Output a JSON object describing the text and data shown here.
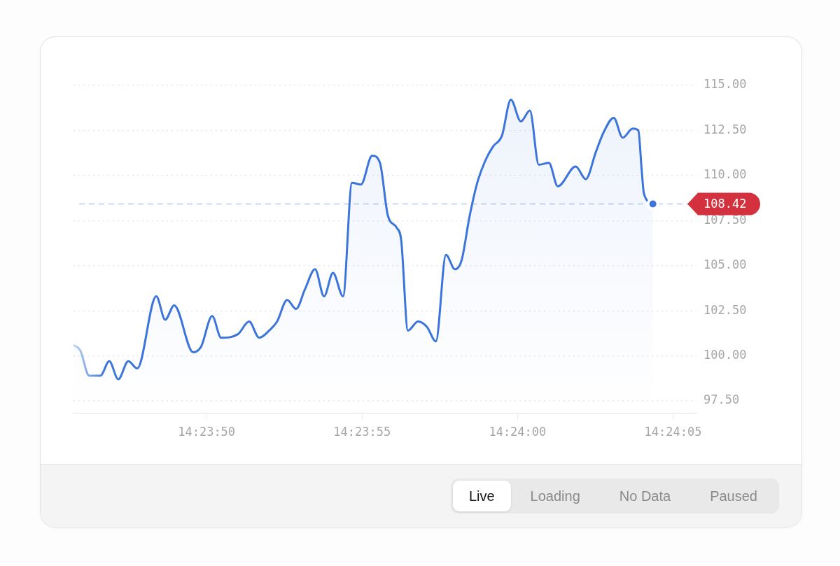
{
  "chart_data": {
    "type": "area",
    "x": [
      14.39603,
      14.39609,
      14.39617,
      14.39627,
      14.39635,
      14.39643,
      14.39652,
      14.3966,
      14.39677,
      14.39685,
      14.39693,
      14.3971,
      14.39717,
      14.39727,
      14.39735,
      14.3975,
      14.3976,
      14.39769,
      14.39778,
      14.39785,
      14.39794,
      14.39802,
      14.3981,
      14.39819,
      14.39827,
      14.39835,
      14.39844,
      14.39852,
      14.3986,
      14.3987,
      14.39877,
      14.39884,
      14.39892,
      14.39896,
      14.39902,
      14.39911,
      14.39919,
      14.39927,
      14.39936,
      14.39944,
      14.3995,
      14.39957,
      14.39964,
      14.39971,
      14.39978,
      14.39986,
      14.39994,
      14.40003,
      14.40011,
      14.40019,
      14.40028,
      14.40036,
      14.40052,
      14.40061,
      14.4007,
      14.40077,
      14.40086,
      14.40094,
      14.40103,
      14.40108,
      14.40111,
      14.40113,
      14.40121
    ],
    "values": [
      100.6,
      100.3,
      98.9,
      98.9,
      99.7,
      98.7,
      99.7,
      99.3,
      103.3,
      102.0,
      102.8,
      100.2,
      100.5,
      102.2,
      101.0,
      101.2,
      101.9,
      101.0,
      101.4,
      101.9,
      103.1,
      102.6,
      103.7,
      104.8,
      103.3,
      104.6,
      103.3,
      109.6,
      109.5,
      111.1,
      110.7,
      107.8,
      107.1,
      106.4,
      101.4,
      101.9,
      101.6,
      100.8,
      105.6,
      104.8,
      105.3,
      107.7,
      109.6,
      110.8,
      111.6,
      112.2,
      114.2,
      113.0,
      113.6,
      110.6,
      110.7,
      109.4,
      110.5,
      109.8,
      111.3,
      112.4,
      113.2,
      112.1,
      112.6,
      112.5,
      110.3,
      109.0,
      108.42
    ],
    "color": "#3b74db",
    "xlim": [
      14.39603,
      14.4016
    ],
    "xticks": [
      {
        "value": 14.39722,
        "label": "14:23:50"
      },
      {
        "value": 14.39861,
        "label": "14:23:55"
      },
      {
        "value": 14.4,
        "label": "14:24:00"
      },
      {
        "value": 14.40139,
        "label": "14:24:05"
      }
    ],
    "ylim": [
      96.8,
      115
    ],
    "yticks": [
      {
        "value": 97.5,
        "label": "97.50"
      },
      {
        "value": 100,
        "label": "100.00"
      },
      {
        "value": 102.5,
        "label": "102.50"
      },
      {
        "value": 105,
        "label": "105.00"
      },
      {
        "value": 107.5,
        "label": "107.50"
      },
      {
        "value": 110,
        "label": "110.00"
      },
      {
        "value": 112.5,
        "label": "112.50"
      },
      {
        "value": 115,
        "label": "115.00"
      }
    ],
    "grid": "y",
    "ref_lines": [
      {
        "axis": "y",
        "value": 108.42,
        "label": "108.42",
        "line_style": "dashed"
      }
    ],
    "annotations": [
      "Live",
      "Loading",
      "No Data",
      "Paused"
    ]
  }
}
